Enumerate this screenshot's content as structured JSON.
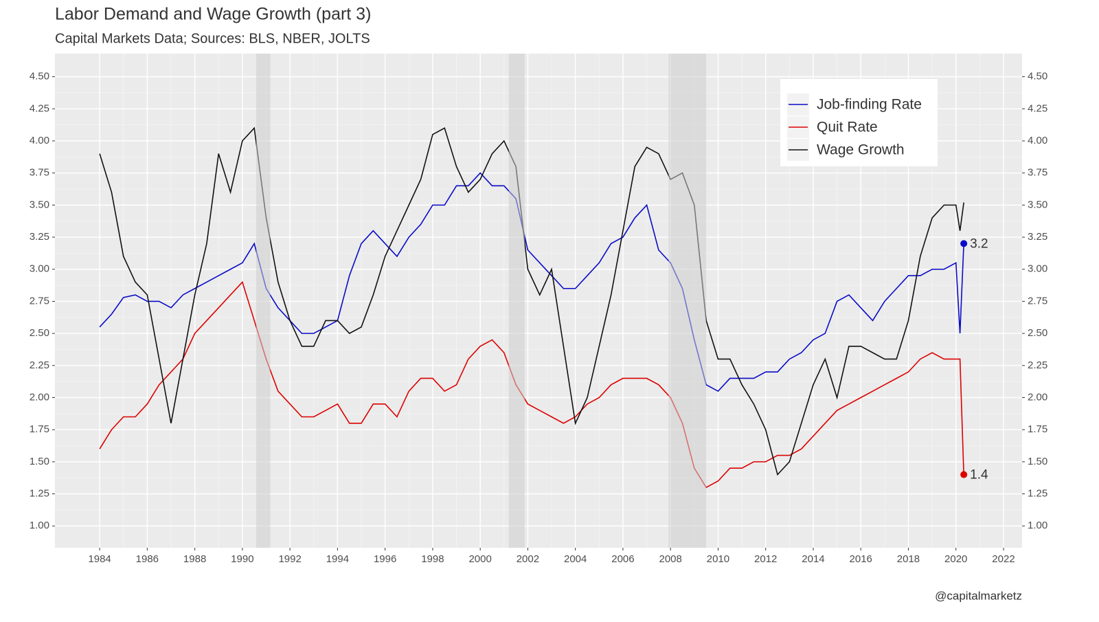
{
  "chart_data": {
    "type": "line",
    "title": "Labor Demand and Wage Growth (part 3)",
    "subtitle": "Capital Markets Data; Sources: BLS, NBER, JOLTS",
    "caption": "@capitalmarketz",
    "x": [
      1984,
      1984.5,
      1985,
      1985.5,
      1986,
      1986.5,
      1987,
      1987.5,
      1988,
      1988.5,
      1989,
      1989.5,
      1990,
      1990.5,
      1991,
      1991.5,
      1992,
      1992.5,
      1993,
      1993.5,
      1994,
      1994.5,
      1995,
      1995.5,
      1996,
      1996.5,
      1997,
      1997.5,
      1998,
      1998.5,
      1999,
      1999.5,
      2000,
      2000.5,
      2001,
      2001.5,
      2002,
      2002.5,
      2003,
      2003.5,
      2004,
      2004.5,
      2005,
      2005.5,
      2006,
      2006.5,
      2007,
      2007.5,
      2008,
      2008.5,
      2009,
      2009.5,
      2010,
      2010.5,
      2011,
      2011.5,
      2012,
      2012.5,
      2013,
      2013.5,
      2014,
      2014.5,
      2015,
      2015.5,
      2016,
      2016.5,
      2017,
      2017.5,
      2018,
      2018.5,
      2019,
      2019.5,
      2020,
      2020.17,
      2020.33
    ],
    "series": [
      {
        "name": "Job-finding Rate",
        "color": "#0a0ac8",
        "end_label": true,
        "values": [
          2.55,
          2.65,
          2.78,
          2.8,
          2.75,
          2.75,
          2.7,
          2.8,
          2.85,
          2.9,
          2.95,
          3.0,
          3.05,
          3.2,
          2.85,
          2.7,
          2.6,
          2.5,
          2.5,
          2.55,
          2.6,
          2.95,
          3.2,
          3.3,
          3.2,
          3.1,
          3.25,
          3.35,
          3.5,
          3.5,
          3.65,
          3.65,
          3.75,
          3.65,
          3.65,
          3.55,
          3.15,
          3.05,
          2.95,
          2.85,
          2.85,
          2.95,
          3.05,
          3.2,
          3.25,
          3.4,
          3.5,
          3.15,
          3.05,
          2.85,
          2.45,
          2.1,
          2.05,
          2.15,
          2.15,
          2.15,
          2.2,
          2.2,
          2.3,
          2.35,
          2.45,
          2.5,
          2.75,
          2.8,
          2.7,
          2.6,
          2.75,
          2.85,
          2.95,
          2.95,
          3.0,
          3.0,
          3.05,
          2.5,
          3.2
        ]
      },
      {
        "name": "Quit Rate",
        "color": "#dd0000",
        "end_label": true,
        "values": [
          1.6,
          1.75,
          1.85,
          1.85,
          1.95,
          2.1,
          2.2,
          2.3,
          2.5,
          2.6,
          2.7,
          2.8,
          2.9,
          2.6,
          2.3,
          2.05,
          1.95,
          1.85,
          1.85,
          1.9,
          1.95,
          1.8,
          1.8,
          1.95,
          1.95,
          1.85,
          2.05,
          2.15,
          2.15,
          2.05,
          2.1,
          2.3,
          2.4,
          2.45,
          2.35,
          2.1,
          1.95,
          1.9,
          1.85,
          1.8,
          1.85,
          1.95,
          2.0,
          2.1,
          2.15,
          2.15,
          2.15,
          2.1,
          2.0,
          1.8,
          1.45,
          1.3,
          1.35,
          1.45,
          1.45,
          1.5,
          1.5,
          1.55,
          1.55,
          1.6,
          1.7,
          1.8,
          1.9,
          1.95,
          2.0,
          2.05,
          2.1,
          2.15,
          2.2,
          2.3,
          2.35,
          2.3,
          2.3,
          2.3,
          1.4
        ]
      },
      {
        "name": "Wage Growth",
        "color": "#111111",
        "end_label": false,
        "values": [
          3.9,
          3.6,
          3.1,
          2.9,
          2.8,
          2.3,
          1.8,
          2.3,
          2.8,
          3.2,
          3.9,
          3.6,
          4.0,
          4.1,
          3.4,
          2.9,
          2.6,
          2.4,
          2.4,
          2.6,
          2.6,
          2.5,
          2.55,
          2.8,
          3.1,
          3.3,
          3.5,
          3.7,
          4.05,
          4.1,
          3.8,
          3.6,
          3.7,
          3.9,
          4.0,
          3.8,
          3.0,
          2.8,
          3.0,
          2.4,
          1.8,
          2.0,
          2.4,
          2.8,
          3.3,
          3.8,
          3.95,
          3.9,
          3.7,
          3.75,
          3.5,
          2.6,
          2.3,
          2.3,
          2.1,
          1.95,
          1.75,
          1.4,
          1.5,
          1.8,
          2.1,
          2.3,
          2.0,
          2.4,
          2.4,
          2.35,
          2.3,
          2.3,
          2.6,
          3.1,
          3.4,
          3.5,
          3.5,
          3.3,
          3.52
        ]
      }
    ],
    "recessions": [
      [
        1990.58,
        1991.17
      ],
      [
        2001.2,
        2001.87
      ],
      [
        2007.92,
        2009.5
      ]
    ],
    "xlim": [
      1982.12,
      2022.78
    ],
    "ylim": [
      0.83,
      4.68
    ],
    "xticks": [
      1984,
      1986,
      1988,
      1990,
      1992,
      1994,
      1996,
      1998,
      2000,
      2002,
      2004,
      2006,
      2008,
      2010,
      2012,
      2014,
      2016,
      2018,
      2020,
      2022
    ],
    "yticks": [
      {
        "value": 1,
        "label": "1.00"
      },
      1.25,
      {
        "value": 1.5,
        "label": "1.50"
      },
      1.75,
      {
        "value": 2,
        "label": "2.00"
      },
      2.25,
      {
        "value": 2.5,
        "label": "2.50"
      },
      2.75,
      {
        "value": 3,
        "label": "3.00"
      },
      3.25,
      {
        "value": 3.5,
        "label": "3.50"
      },
      3.75,
      {
        "value": 4,
        "label": "4.00"
      },
      4.25,
      {
        "value": 4.5,
        "label": "4.50"
      }
    ],
    "grid": true,
    "legend": "top-right"
  }
}
